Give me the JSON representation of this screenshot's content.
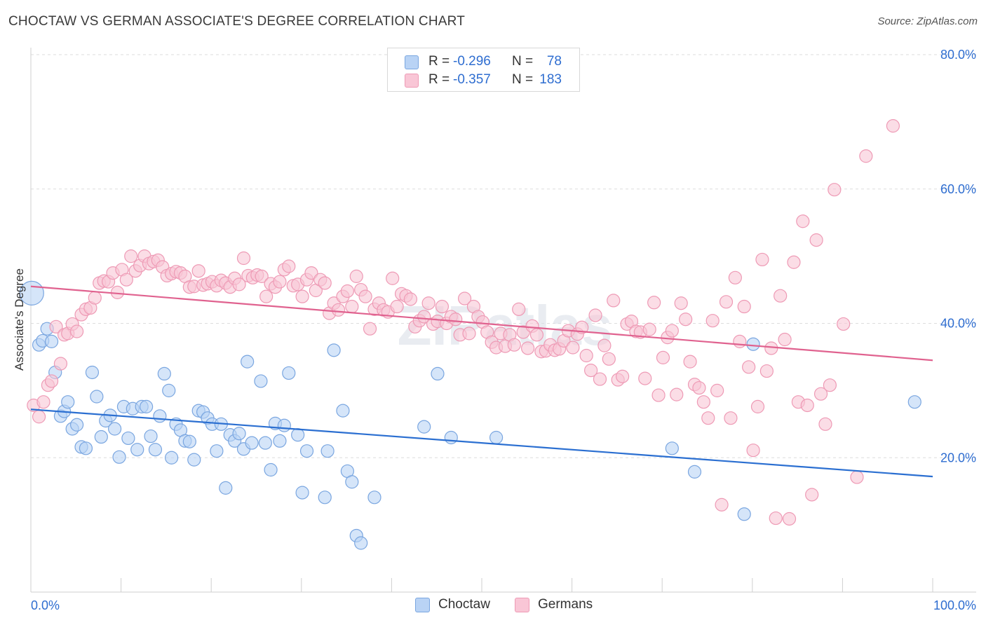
{
  "title": "CHOCTAW VS GERMAN ASSOCIATE'S DEGREE CORRELATION CHART",
  "source": "Source: ZipAtlas.com",
  "watermark": "ZIPatlas",
  "legend_top": [
    {
      "r_label": "R =",
      "r_value": "-0.296",
      "n_label": "N =",
      "n_value": "78"
    },
    {
      "r_label": "R =",
      "r_value": "-0.357",
      "n_label": "N =",
      "n_value": "183"
    }
  ],
  "legend_bottom": [
    "Choctaw",
    "Germans"
  ],
  "colors": {
    "choctaw_fill": "#b9d3f5",
    "choctaw_stroke": "#7aa6e0",
    "choctaw_line": "#2b6fd1",
    "germans_fill": "#f9c6d6",
    "germans_stroke": "#ee9ab5",
    "germans_line": "#e0628f",
    "axis_label": "#2e6dd0",
    "grid": "#dddddd"
  },
  "chart_data": {
    "type": "scatter",
    "title": "CHOCTAW VS GERMAN ASSOCIATE'S DEGREE CORRELATION CHART",
    "xlabel": "",
    "ylabel": "Associate's Degree",
    "xlim": [
      0,
      100
    ],
    "ylim": [
      0,
      80
    ],
    "x_tick_labels": [
      "0.0%",
      "100.0%"
    ],
    "y_ticks": [
      20,
      40,
      60,
      80
    ],
    "y_tick_labels": [
      "20.0%",
      "40.0%",
      "60.0%",
      "80.0%"
    ],
    "legend": "top-center",
    "series": [
      {
        "name": "Choctaw",
        "r": -0.296,
        "n": 78,
        "trend": {
          "x": [
            0,
            100
          ],
          "y": [
            27.2,
            17.2
          ]
        },
        "points": [
          [
            0.1,
            44.5
          ],
          [
            0.9,
            36.8
          ],
          [
            1.3,
            37.4
          ],
          [
            1.8,
            39.2
          ],
          [
            2.3,
            37.3
          ],
          [
            2.7,
            32.7
          ],
          [
            3.3,
            26.2
          ],
          [
            3.7,
            26.9
          ],
          [
            4.1,
            28.3
          ],
          [
            4.6,
            24.3
          ],
          [
            5.1,
            24.9
          ],
          [
            5.6,
            21.6
          ],
          [
            6.1,
            21.4
          ],
          [
            6.8,
            32.7
          ],
          [
            7.3,
            29.1
          ],
          [
            7.8,
            23.1
          ],
          [
            8.3,
            25.5
          ],
          [
            8.8,
            26.3
          ],
          [
            9.3,
            24.3
          ],
          [
            9.8,
            20.1
          ],
          [
            10.3,
            27.6
          ],
          [
            10.8,
            22.9
          ],
          [
            11.3,
            27.3
          ],
          [
            11.8,
            21.2
          ],
          [
            12.3,
            27.6
          ],
          [
            12.8,
            27.6
          ],
          [
            13.3,
            23.2
          ],
          [
            13.8,
            21.2
          ],
          [
            14.3,
            26.2
          ],
          [
            14.8,
            32.5
          ],
          [
            15.3,
            30.0
          ],
          [
            15.6,
            20.0
          ],
          [
            16.1,
            25.0
          ],
          [
            16.6,
            24.1
          ],
          [
            17.1,
            22.5
          ],
          [
            17.6,
            22.4
          ],
          [
            18.1,
            19.7
          ],
          [
            18.6,
            27.0
          ],
          [
            19.1,
            26.8
          ],
          [
            19.6,
            25.9
          ],
          [
            20.1,
            25.0
          ],
          [
            20.6,
            21.0
          ],
          [
            21.1,
            25.0
          ],
          [
            21.6,
            15.5
          ],
          [
            22.1,
            23.4
          ],
          [
            22.6,
            22.5
          ],
          [
            23.1,
            23.6
          ],
          [
            23.6,
            21.3
          ],
          [
            24.0,
            34.3
          ],
          [
            24.5,
            22.2
          ],
          [
            25.5,
            31.4
          ],
          [
            26.0,
            22.2
          ],
          [
            26.6,
            18.2
          ],
          [
            27.1,
            25.1
          ],
          [
            27.6,
            22.5
          ],
          [
            28.1,
            24.8
          ],
          [
            28.6,
            32.6
          ],
          [
            29.6,
            23.4
          ],
          [
            30.1,
            14.8
          ],
          [
            30.6,
            21.0
          ],
          [
            32.6,
            14.1
          ],
          [
            32.9,
            21.0
          ],
          [
            33.6,
            36.0
          ],
          [
            34.6,
            27.0
          ],
          [
            35.1,
            18.0
          ],
          [
            35.6,
            16.4
          ],
          [
            36.1,
            8.4
          ],
          [
            36.6,
            7.3
          ],
          [
            38.1,
            14.1
          ],
          [
            43.6,
            24.6
          ],
          [
            45.1,
            32.5
          ],
          [
            46.6,
            23.0
          ],
          [
            51.6,
            23.0
          ],
          [
            71.1,
            21.4
          ],
          [
            73.6,
            17.9
          ],
          [
            79.1,
            11.6
          ],
          [
            80.1,
            36.9
          ],
          [
            98.0,
            28.3
          ]
        ]
      },
      {
        "name": "Germans",
        "r": -0.357,
        "n": 183,
        "trend": {
          "x": [
            0,
            100
          ],
          "y": [
            45.5,
            34.5
          ]
        },
        "points": [
          [
            0.3,
            27.8
          ],
          [
            0.9,
            26.1
          ],
          [
            1.4,
            28.3
          ],
          [
            1.9,
            30.8
          ],
          [
            2.3,
            31.4
          ],
          [
            2.8,
            39.5
          ],
          [
            3.3,
            34.0
          ],
          [
            3.7,
            38.3
          ],
          [
            4.1,
            38.5
          ],
          [
            4.6,
            39.9
          ],
          [
            5.1,
            38.8
          ],
          [
            5.6,
            41.3
          ],
          [
            6.1,
            42.1
          ],
          [
            6.6,
            42.3
          ],
          [
            7.1,
            43.8
          ],
          [
            7.6,
            46.0
          ],
          [
            8.1,
            46.3
          ],
          [
            8.6,
            46.2
          ],
          [
            9.1,
            47.5
          ],
          [
            9.6,
            44.6
          ],
          [
            10.1,
            48.0
          ],
          [
            10.6,
            46.5
          ],
          [
            11.1,
            50.0
          ],
          [
            11.6,
            47.8
          ],
          [
            12.1,
            48.6
          ],
          [
            12.6,
            50.0
          ],
          [
            13.1,
            48.9
          ],
          [
            13.6,
            49.2
          ],
          [
            14.1,
            49.4
          ],
          [
            14.6,
            48.4
          ],
          [
            15.1,
            47.1
          ],
          [
            15.6,
            47.4
          ],
          [
            16.1,
            47.7
          ],
          [
            16.6,
            47.5
          ],
          [
            17.1,
            47.0
          ],
          [
            17.6,
            45.4
          ],
          [
            18.1,
            45.5
          ],
          [
            18.6,
            47.8
          ],
          [
            19.1,
            45.7
          ],
          [
            19.6,
            45.9
          ],
          [
            20.1,
            46.2
          ],
          [
            20.6,
            45.6
          ],
          [
            21.1,
            46.4
          ],
          [
            21.6,
            46.0
          ],
          [
            22.1,
            45.4
          ],
          [
            22.6,
            46.7
          ],
          [
            23.1,
            45.8
          ],
          [
            23.6,
            49.7
          ],
          [
            24.1,
            47.1
          ],
          [
            24.6,
            46.8
          ],
          [
            25.1,
            47.2
          ],
          [
            25.6,
            47.0
          ],
          [
            26.1,
            44.0
          ],
          [
            26.6,
            45.9
          ],
          [
            27.1,
            45.4
          ],
          [
            27.6,
            46.2
          ],
          [
            28.1,
            48.0
          ],
          [
            28.6,
            48.5
          ],
          [
            29.1,
            45.6
          ],
          [
            29.6,
            45.8
          ],
          [
            30.1,
            44.0
          ],
          [
            30.6,
            46.5
          ],
          [
            31.1,
            47.5
          ],
          [
            31.6,
            44.9
          ],
          [
            32.1,
            46.5
          ],
          [
            32.6,
            46.0
          ],
          [
            33.1,
            41.5
          ],
          [
            33.6,
            43.0
          ],
          [
            34.1,
            42.0
          ],
          [
            34.6,
            44.0
          ],
          [
            35.1,
            44.8
          ],
          [
            35.6,
            42.5
          ],
          [
            36.1,
            47.0
          ],
          [
            36.6,
            45.0
          ],
          [
            37.1,
            44.0
          ],
          [
            37.6,
            39.2
          ],
          [
            38.1,
            42.1
          ],
          [
            38.6,
            43.0
          ],
          [
            39.1,
            42.0
          ],
          [
            39.6,
            41.7
          ],
          [
            40.1,
            46.7
          ],
          [
            40.6,
            42.5
          ],
          [
            41.1,
            44.4
          ],
          [
            41.6,
            44.1
          ],
          [
            42.1,
            43.6
          ],
          [
            42.6,
            39.5
          ],
          [
            43.1,
            40.4
          ],
          [
            43.6,
            41.0
          ],
          [
            44.1,
            43.0
          ],
          [
            44.6,
            39.9
          ],
          [
            45.1,
            40.3
          ],
          [
            45.6,
            42.5
          ],
          [
            46.1,
            40.0
          ],
          [
            46.6,
            41.0
          ],
          [
            47.1,
            40.6
          ],
          [
            47.6,
            38.3
          ],
          [
            48.1,
            43.7
          ],
          [
            48.6,
            38.5
          ],
          [
            49.1,
            42.5
          ],
          [
            49.6,
            41.0
          ],
          [
            50.1,
            40.2
          ],
          [
            50.6,
            38.7
          ],
          [
            51.1,
            37.2
          ],
          [
            51.6,
            36.4
          ],
          [
            52.1,
            38.5
          ],
          [
            52.6,
            36.6
          ],
          [
            53.1,
            38.3
          ],
          [
            53.6,
            36.8
          ],
          [
            54.1,
            42.1
          ],
          [
            54.6,
            38.7
          ],
          [
            55.1,
            36.3
          ],
          [
            55.6,
            39.6
          ],
          [
            56.1,
            38.3
          ],
          [
            56.6,
            35.8
          ],
          [
            57.1,
            35.9
          ],
          [
            57.6,
            36.8
          ],
          [
            58.1,
            36.0
          ],
          [
            58.6,
            36.2
          ],
          [
            59.1,
            37.4
          ],
          [
            59.6,
            38.9
          ],
          [
            60.1,
            36.4
          ],
          [
            60.6,
            38.4
          ],
          [
            61.1,
            39.4
          ],
          [
            61.6,
            35.2
          ],
          [
            62.1,
            33.0
          ],
          [
            62.6,
            41.2
          ],
          [
            63.1,
            31.7
          ],
          [
            63.6,
            36.7
          ],
          [
            64.1,
            34.7
          ],
          [
            64.6,
            43.4
          ],
          [
            65.1,
            31.6
          ],
          [
            65.6,
            32.1
          ],
          [
            66.1,
            39.9
          ],
          [
            66.6,
            40.3
          ],
          [
            67.1,
            38.8
          ],
          [
            67.6,
            38.7
          ],
          [
            68.1,
            31.8
          ],
          [
            68.6,
            39.1
          ],
          [
            69.1,
            43.1
          ],
          [
            69.6,
            29.3
          ],
          [
            70.1,
            34.9
          ],
          [
            70.6,
            37.9
          ],
          [
            71.1,
            38.9
          ],
          [
            71.6,
            29.4
          ],
          [
            72.1,
            43.0
          ],
          [
            72.6,
            40.6
          ],
          [
            73.1,
            34.3
          ],
          [
            73.6,
            30.9
          ],
          [
            74.1,
            30.4
          ],
          [
            74.6,
            28.3
          ],
          [
            75.1,
            25.9
          ],
          [
            75.6,
            40.4
          ],
          [
            76.1,
            30.0
          ],
          [
            76.6,
            13.0
          ],
          [
            77.1,
            43.2
          ],
          [
            77.6,
            25.9
          ],
          [
            78.1,
            46.8
          ],
          [
            78.6,
            37.3
          ],
          [
            79.1,
            42.5
          ],
          [
            79.6,
            33.5
          ],
          [
            80.1,
            21.1
          ],
          [
            80.6,
            27.6
          ],
          [
            81.1,
            49.5
          ],
          [
            81.6,
            32.9
          ],
          [
            82.1,
            36.3
          ],
          [
            82.6,
            11.0
          ],
          [
            83.1,
            44.1
          ],
          [
            83.6,
            37.6
          ],
          [
            84.1,
            10.9
          ],
          [
            84.6,
            49.1
          ],
          [
            85.1,
            28.3
          ],
          [
            85.6,
            55.2
          ],
          [
            86.1,
            27.8
          ],
          [
            86.6,
            14.5
          ],
          [
            87.1,
            52.4
          ],
          [
            87.6,
            29.5
          ],
          [
            88.1,
            25.0
          ],
          [
            88.6,
            30.8
          ],
          [
            89.1,
            59.9
          ],
          [
            90.1,
            39.9
          ],
          [
            91.6,
            17.1
          ],
          [
            92.6,
            64.9
          ],
          [
            95.6,
            69.4
          ]
        ]
      }
    ]
  }
}
